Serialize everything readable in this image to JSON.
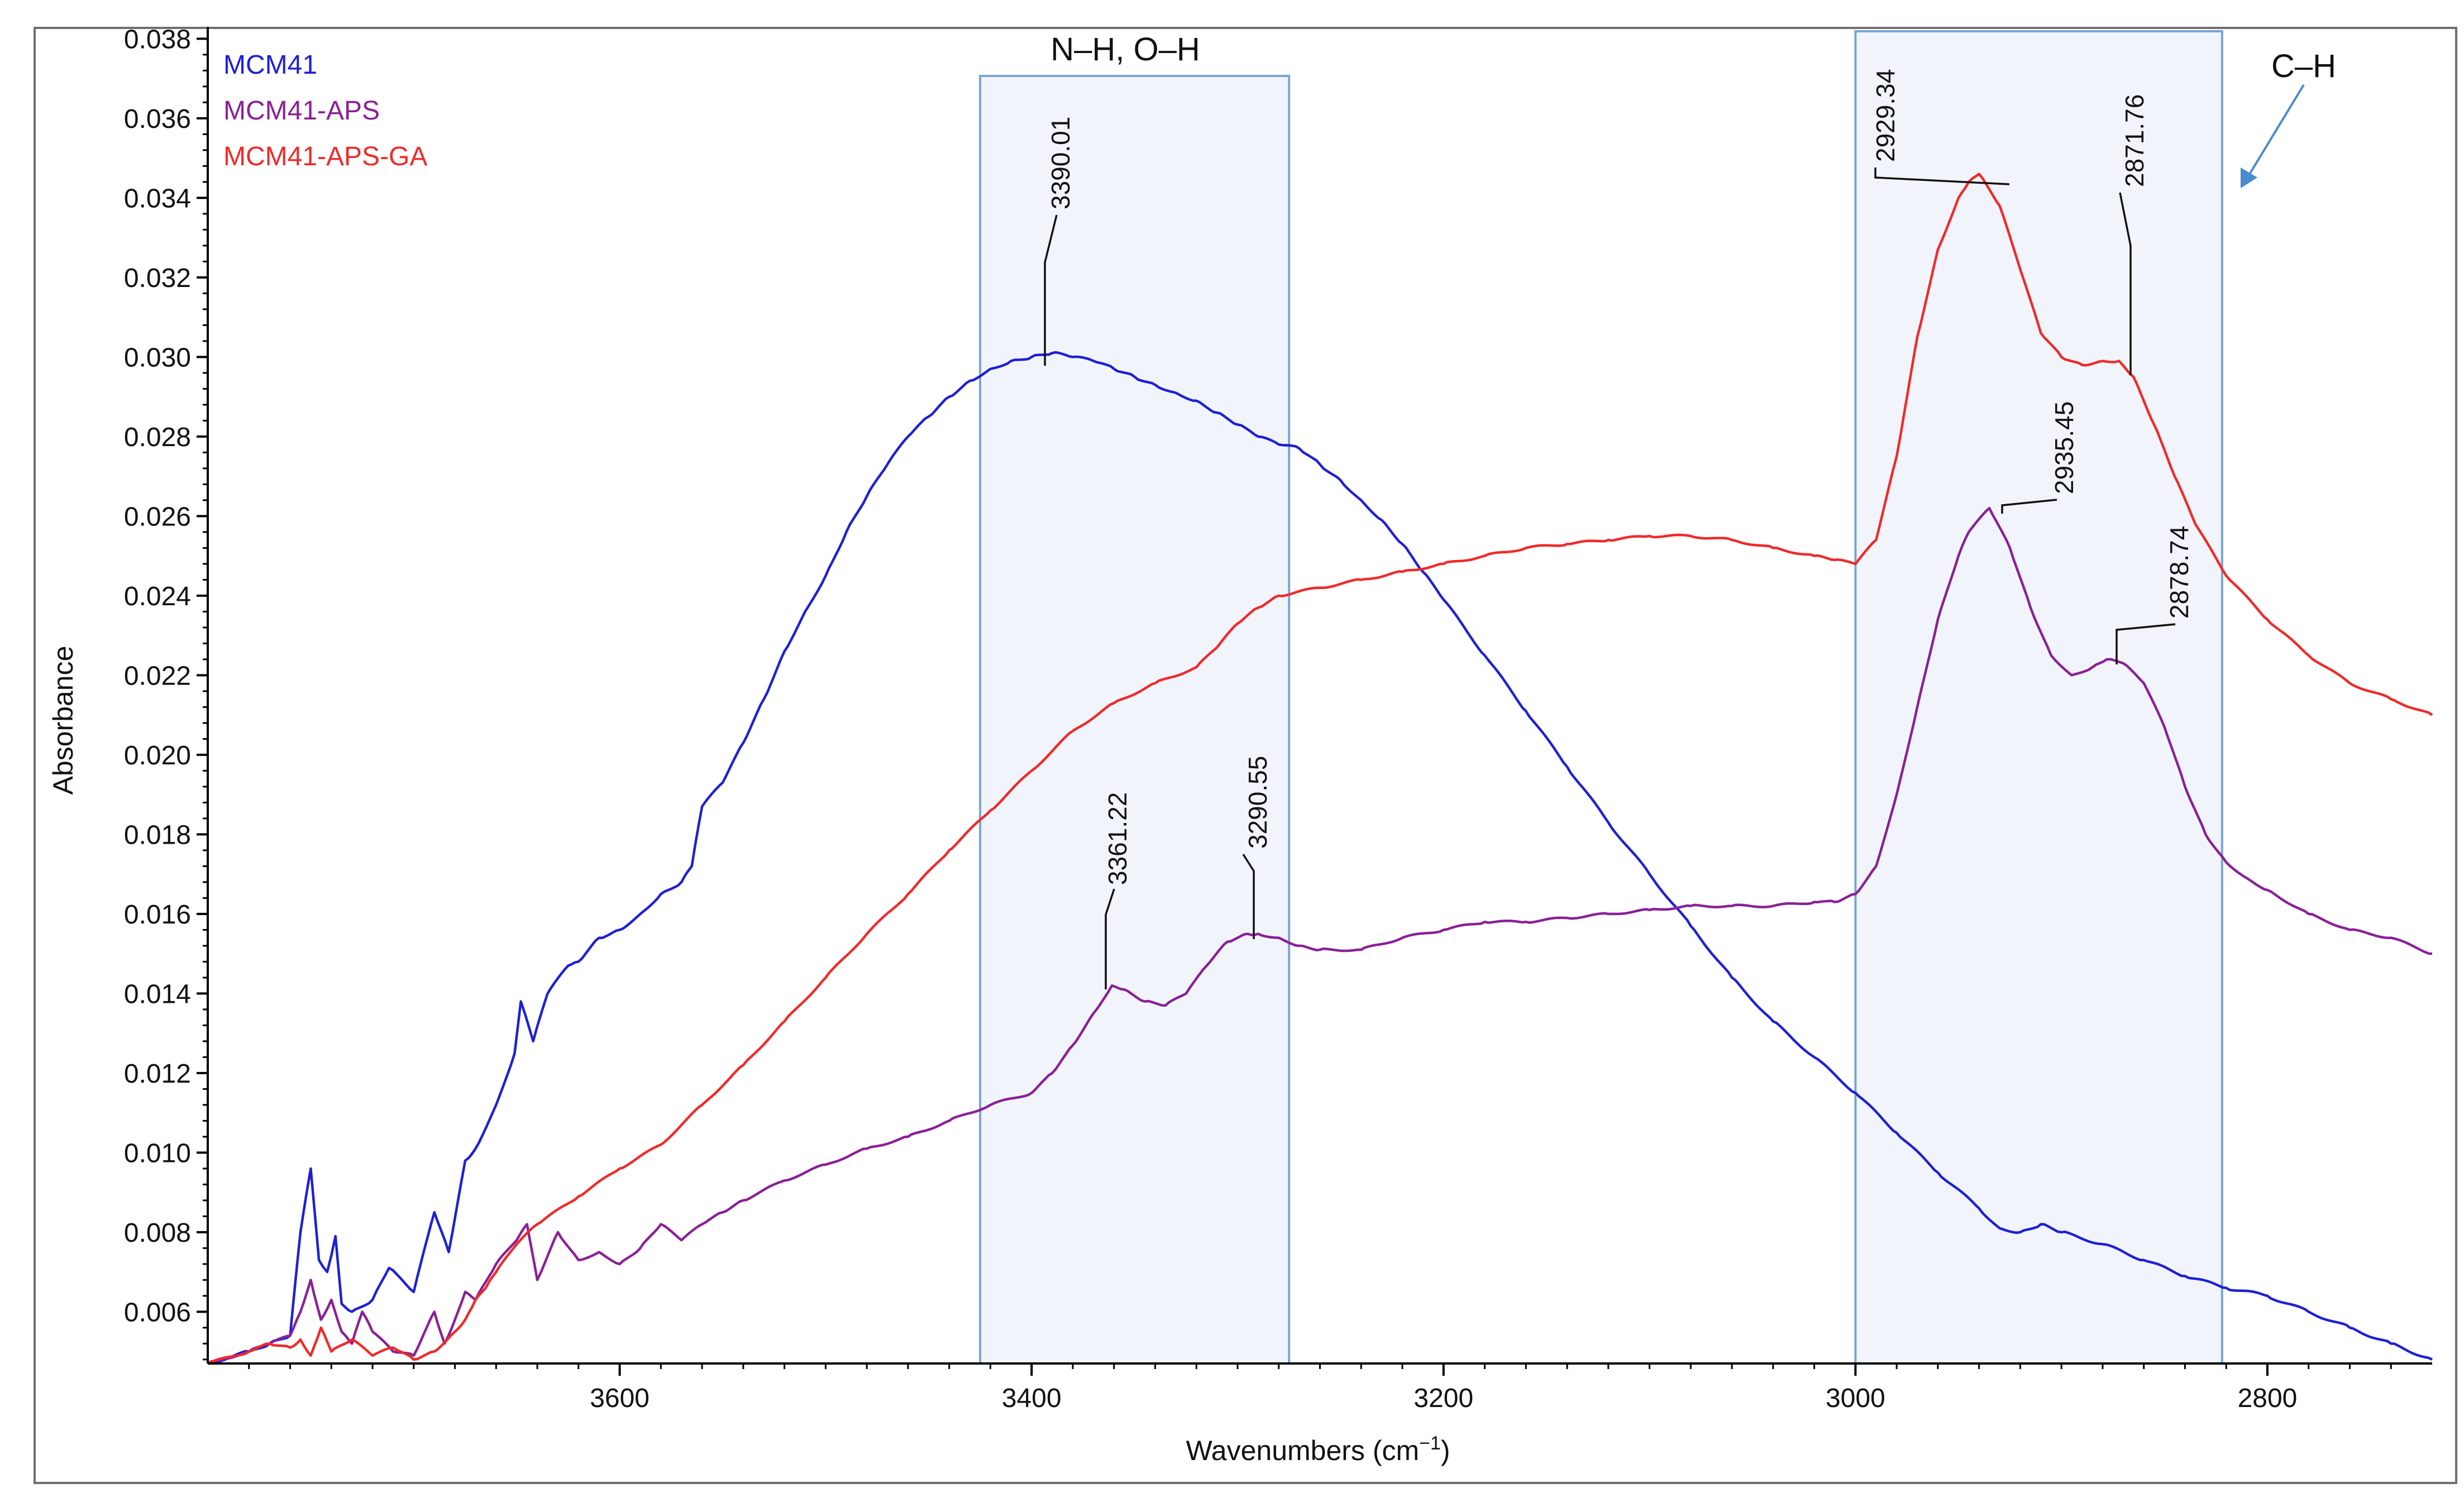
{
  "chart_data": {
    "type": "line",
    "title": "",
    "xlabel": "Wavenumbers (cm",
    "xlabel_superscript": "−1",
    "xlabel_close": ")",
    "ylabel": "Absorbance",
    "xlim": [
      3800,
      2720
    ],
    "ylim": [
      0.0047,
      0.0383
    ],
    "x_ticks": [
      3600,
      3400,
      3200,
      3000,
      2800
    ],
    "x_tick_labels": [
      "3600",
      "3400",
      "3200",
      "3000",
      "2800"
    ],
    "y_ticks": [
      0.006,
      0.008,
      0.01,
      0.012,
      0.014,
      0.016,
      0.018,
      0.02,
      0.022,
      0.024,
      0.026,
      0.028,
      0.03,
      0.032,
      0.034,
      0.036,
      0.038
    ],
    "y_tick_labels": [
      "0.006",
      "0.008",
      "0.010",
      "0.012",
      "0.014",
      "0.016",
      "0.018",
      "0.020",
      "0.022",
      "0.024",
      "0.026",
      "0.028",
      "0.030",
      "0.032",
      "0.034",
      "0.036",
      "0.038"
    ],
    "grid": false,
    "legend_position": "top-left",
    "series": [
      {
        "name": "MCM41",
        "color": "#1f1fd6",
        "x": [
          3800,
          3780,
          3770,
          3760,
          3755,
          3750,
          3746,
          3742,
          3738,
          3735,
          3730,
          3720,
          3712,
          3700,
          3690,
          3683,
          3675,
          3670,
          3660,
          3651,
          3648,
          3642,
          3635,
          3625,
          3620,
          3610,
          3600,
          3590,
          3580,
          3570,
          3565,
          3560,
          3550,
          3540,
          3530,
          3520,
          3510,
          3500,
          3490,
          3480,
          3470,
          3460,
          3450,
          3440,
          3430,
          3420,
          3410,
          3400,
          3390,
          3380,
          3370,
          3360,
          3350,
          3340,
          3330,
          3320,
          3310,
          3300,
          3290,
          3280,
          3270,
          3260,
          3250,
          3240,
          3230,
          3220,
          3210,
          3200,
          3180,
          3160,
          3140,
          3120,
          3100,
          3080,
          3060,
          3040,
          3020,
          3000,
          2980,
          2960,
          2940,
          2930,
          2920,
          2910,
          2900,
          2880,
          2860,
          2840,
          2820,
          2800,
          2780,
          2760,
          2740,
          2720
        ],
        "values": [
          0.0047,
          0.005,
          0.0052,
          0.0054,
          0.008,
          0.0096,
          0.0073,
          0.007,
          0.0079,
          0.0062,
          0.006,
          0.0063,
          0.0071,
          0.0065,
          0.0085,
          0.0075,
          0.0098,
          0.0101,
          0.0112,
          0.0125,
          0.0138,
          0.0128,
          0.014,
          0.0147,
          0.0148,
          0.0154,
          0.0156,
          0.016,
          0.0165,
          0.0168,
          0.0172,
          0.0187,
          0.0193,
          0.0203,
          0.0214,
          0.0226,
          0.0236,
          0.0245,
          0.0256,
          0.0265,
          0.0273,
          0.028,
          0.0285,
          0.029,
          0.0294,
          0.0297,
          0.0299,
          0.03,
          0.0301,
          0.03,
          0.0299,
          0.0297,
          0.0295,
          0.0293,
          0.0291,
          0.0289,
          0.0286,
          0.0283,
          0.028,
          0.0278,
          0.0277,
          0.0273,
          0.0269,
          0.0264,
          0.0259,
          0.0253,
          0.0246,
          0.0239,
          0.0225,
          0.0211,
          0.0197,
          0.0183,
          0.017,
          0.0157,
          0.0144,
          0.0133,
          0.0124,
          0.0115,
          0.0105,
          0.0095,
          0.0086,
          0.0081,
          0.008,
          0.0082,
          0.008,
          0.0077,
          0.0073,
          0.0069,
          0.0066,
          0.0064,
          0.006,
          0.0056,
          0.0052,
          0.0048
        ]
      },
      {
        "name": "MCM41-APS",
        "color": "#8a2096",
        "x": [
          3800,
          3780,
          3770,
          3760,
          3755,
          3750,
          3745,
          3740,
          3735,
          3730,
          3725,
          3720,
          3710,
          3700,
          3690,
          3685,
          3680,
          3675,
          3670,
          3660,
          3650,
          3645,
          3640,
          3630,
          3620,
          3610,
          3600,
          3590,
          3580,
          3570,
          3560,
          3550,
          3540,
          3520,
          3500,
          3480,
          3460,
          3440,
          3420,
          3400,
          3390,
          3380,
          3370,
          3361,
          3355,
          3345,
          3335,
          3325,
          3315,
          3305,
          3295,
          3290,
          3280,
          3270,
          3260,
          3240,
          3220,
          3200,
          3180,
          3160,
          3140,
          3120,
          3100,
          3080,
          3060,
          3040,
          3020,
          3010,
          3000,
          2990,
          2980,
          2970,
          2960,
          2950,
          2945,
          2935,
          2925,
          2915,
          2905,
          2895,
          2885,
          2878,
          2870,
          2860,
          2850,
          2840,
          2830,
          2820,
          2810,
          2800,
          2780,
          2760,
          2740,
          2720
        ],
        "values": [
          0.0047,
          0.005,
          0.0052,
          0.0054,
          0.006,
          0.0068,
          0.0058,
          0.0063,
          0.0055,
          0.0052,
          0.006,
          0.0055,
          0.005,
          0.0049,
          0.006,
          0.0052,
          0.0058,
          0.0065,
          0.0063,
          0.0072,
          0.0078,
          0.0082,
          0.0068,
          0.008,
          0.0073,
          0.0075,
          0.0072,
          0.0076,
          0.0082,
          0.0078,
          0.0082,
          0.0085,
          0.0088,
          0.0093,
          0.0097,
          0.0101,
          0.0104,
          0.0108,
          0.0112,
          0.0115,
          0.012,
          0.0127,
          0.0135,
          0.0142,
          0.0141,
          0.0138,
          0.0137,
          0.014,
          0.0147,
          0.0153,
          0.0155,
          0.0155,
          0.0154,
          0.0152,
          0.0151,
          0.0151,
          0.0154,
          0.0156,
          0.0158,
          0.0158,
          0.0159,
          0.016,
          0.0161,
          0.0162,
          0.0162,
          0.0162,
          0.0163,
          0.0163,
          0.0165,
          0.0172,
          0.019,
          0.0212,
          0.0234,
          0.025,
          0.0256,
          0.0262,
          0.0252,
          0.0237,
          0.0225,
          0.022,
          0.0222,
          0.0224,
          0.0223,
          0.0218,
          0.0207,
          0.0192,
          0.018,
          0.0173,
          0.0169,
          0.0166,
          0.016,
          0.0156,
          0.0154,
          0.015
        ]
      },
      {
        "name": "MCM41-APS-GA",
        "color": "#f02a2a",
        "x": [
          3800,
          3780,
          3770,
          3760,
          3755,
          3750,
          3745,
          3740,
          3730,
          3720,
          3710,
          3700,
          3690,
          3680,
          3675,
          3670,
          3665,
          3660,
          3650,
          3640,
          3620,
          3600,
          3580,
          3560,
          3540,
          3520,
          3500,
          3480,
          3460,
          3440,
          3420,
          3400,
          3380,
          3360,
          3340,
          3320,
          3310,
          3300,
          3290,
          3280,
          3260,
          3240,
          3220,
          3200,
          3180,
          3160,
          3140,
          3120,
          3100,
          3080,
          3060,
          3040,
          3020,
          3010,
          3000,
          2990,
          2980,
          2970,
          2960,
          2950,
          2945,
          2940,
          2930,
          2920,
          2910,
          2900,
          2890,
          2880,
          2872,
          2865,
          2855,
          2845,
          2835,
          2820,
          2800,
          2780,
          2760,
          2740,
          2720
        ],
        "values": [
          0.0047,
          0.005,
          0.0052,
          0.0051,
          0.0053,
          0.0049,
          0.0056,
          0.005,
          0.0053,
          0.0049,
          0.0051,
          0.0048,
          0.005,
          0.0055,
          0.0058,
          0.0063,
          0.0066,
          0.007,
          0.0077,
          0.0082,
          0.0089,
          0.0096,
          0.0102,
          0.0112,
          0.0122,
          0.0133,
          0.0144,
          0.0155,
          0.0165,
          0.0176,
          0.0186,
          0.0196,
          0.0206,
          0.0213,
          0.0218,
          0.0222,
          0.0227,
          0.0233,
          0.0237,
          0.024,
          0.0242,
          0.0244,
          0.0246,
          0.0248,
          0.025,
          0.0252,
          0.0253,
          0.0254,
          0.0255,
          0.0255,
          0.0254,
          0.0252,
          0.025,
          0.0249,
          0.0248,
          0.0254,
          0.0275,
          0.0305,
          0.0327,
          0.034,
          0.0344,
          0.0346,
          0.0338,
          0.0322,
          0.0306,
          0.03,
          0.0298,
          0.0299,
          0.0299,
          0.0295,
          0.0283,
          0.027,
          0.0258,
          0.0245,
          0.0234,
          0.0225,
          0.0218,
          0.0214,
          0.021
        ]
      }
    ],
    "regions": [
      {
        "label": "N–H, O–H",
        "x_range": [
          3425,
          3275
        ],
        "y_top": 0.0377
      },
      {
        "label": "C–H",
        "x_range": [
          3000,
          2822
        ],
        "y_top": 0.0383
      }
    ],
    "peak_annotations": [
      {
        "label": "3390.01",
        "x": 3390.01,
        "series": "MCM41"
      },
      {
        "label": "3361.22",
        "x": 3361.22,
        "series": "MCM41-APS"
      },
      {
        "label": "3290.55",
        "x": 3290.55,
        "series": "MCM41-APS"
      },
      {
        "label": "2929.34",
        "x": 2929.34,
        "series": "MCM41-APS-GA"
      },
      {
        "label": "2871.76",
        "x": 2871.76,
        "series": "MCM41-APS-GA"
      },
      {
        "label": "2935.45",
        "x": 2935.45,
        "series": "MCM41-APS"
      },
      {
        "label": "2878.74",
        "x": 2878.74,
        "series": "MCM41-APS"
      }
    ]
  }
}
